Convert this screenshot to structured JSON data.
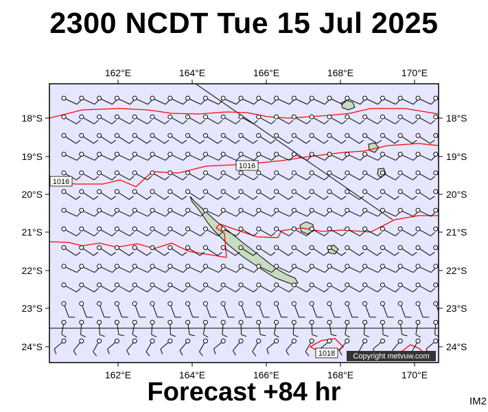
{
  "header": {
    "title": "2300 NCDT Tue 15 Jul 2025"
  },
  "footer": {
    "forecast": "Forecast +84 hr",
    "code": "IM2"
  },
  "map": {
    "copyright": "Copyright metvuw.com",
    "longitude_ticks": [
      "162°E",
      "164°E",
      "166°E",
      "168°E",
      "170°E"
    ],
    "latitude_ticks": [
      "18°S",
      "19°S",
      "20°S",
      "21°S",
      "22°S",
      "23°S",
      "24°S"
    ],
    "isobar_labels": [
      {
        "text": "1016",
        "lon": 165.7,
        "lat": -19.3
      },
      {
        "text": "1016",
        "lon": 160.65,
        "lat": -19.65
      },
      {
        "text": "1018",
        "lon": 167.75,
        "lat": -24.12
      }
    ],
    "colors": {
      "ocean": "#e6e6ff",
      "land": "#c8dcc0",
      "isobar": "#ff0000",
      "barb": "#000000"
    }
  }
}
